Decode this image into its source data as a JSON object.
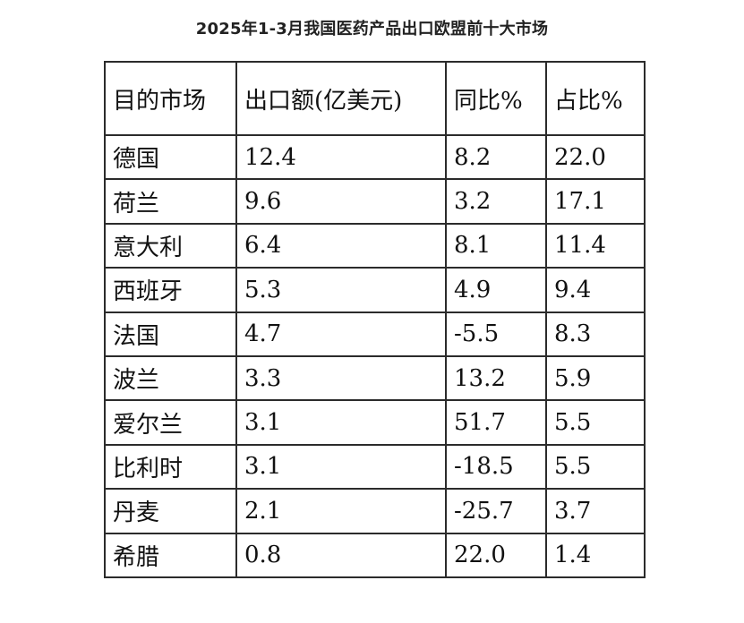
{
  "chart_data": {
    "type": "table",
    "title": "2025年1-3月我国医药产品出口欧盟前十大市场",
    "columns": [
      "目的市场",
      "出口额(亿美元)",
      "同比%",
      "占比%"
    ],
    "rows": [
      [
        "德国",
        "12.4",
        "8.2",
        "22.0"
      ],
      [
        "荷兰",
        "9.6",
        "3.2",
        "17.1"
      ],
      [
        "意大利",
        "6.4",
        "8.1",
        "11.4"
      ],
      [
        "西班牙",
        "5.3",
        "4.9",
        "9.4"
      ],
      [
        "法国",
        "4.7",
        "-5.5",
        "8.3"
      ],
      [
        "波兰",
        "3.3",
        "13.2",
        "5.9"
      ],
      [
        "爱尔兰",
        "3.1",
        "51.7",
        "5.5"
      ],
      [
        "比利时",
        "3.1",
        "-18.5",
        "5.5"
      ],
      [
        "丹麦",
        "2.1",
        "-25.7",
        "3.7"
      ],
      [
        "希腊",
        "0.8",
        "22.0",
        "1.4"
      ]
    ]
  }
}
